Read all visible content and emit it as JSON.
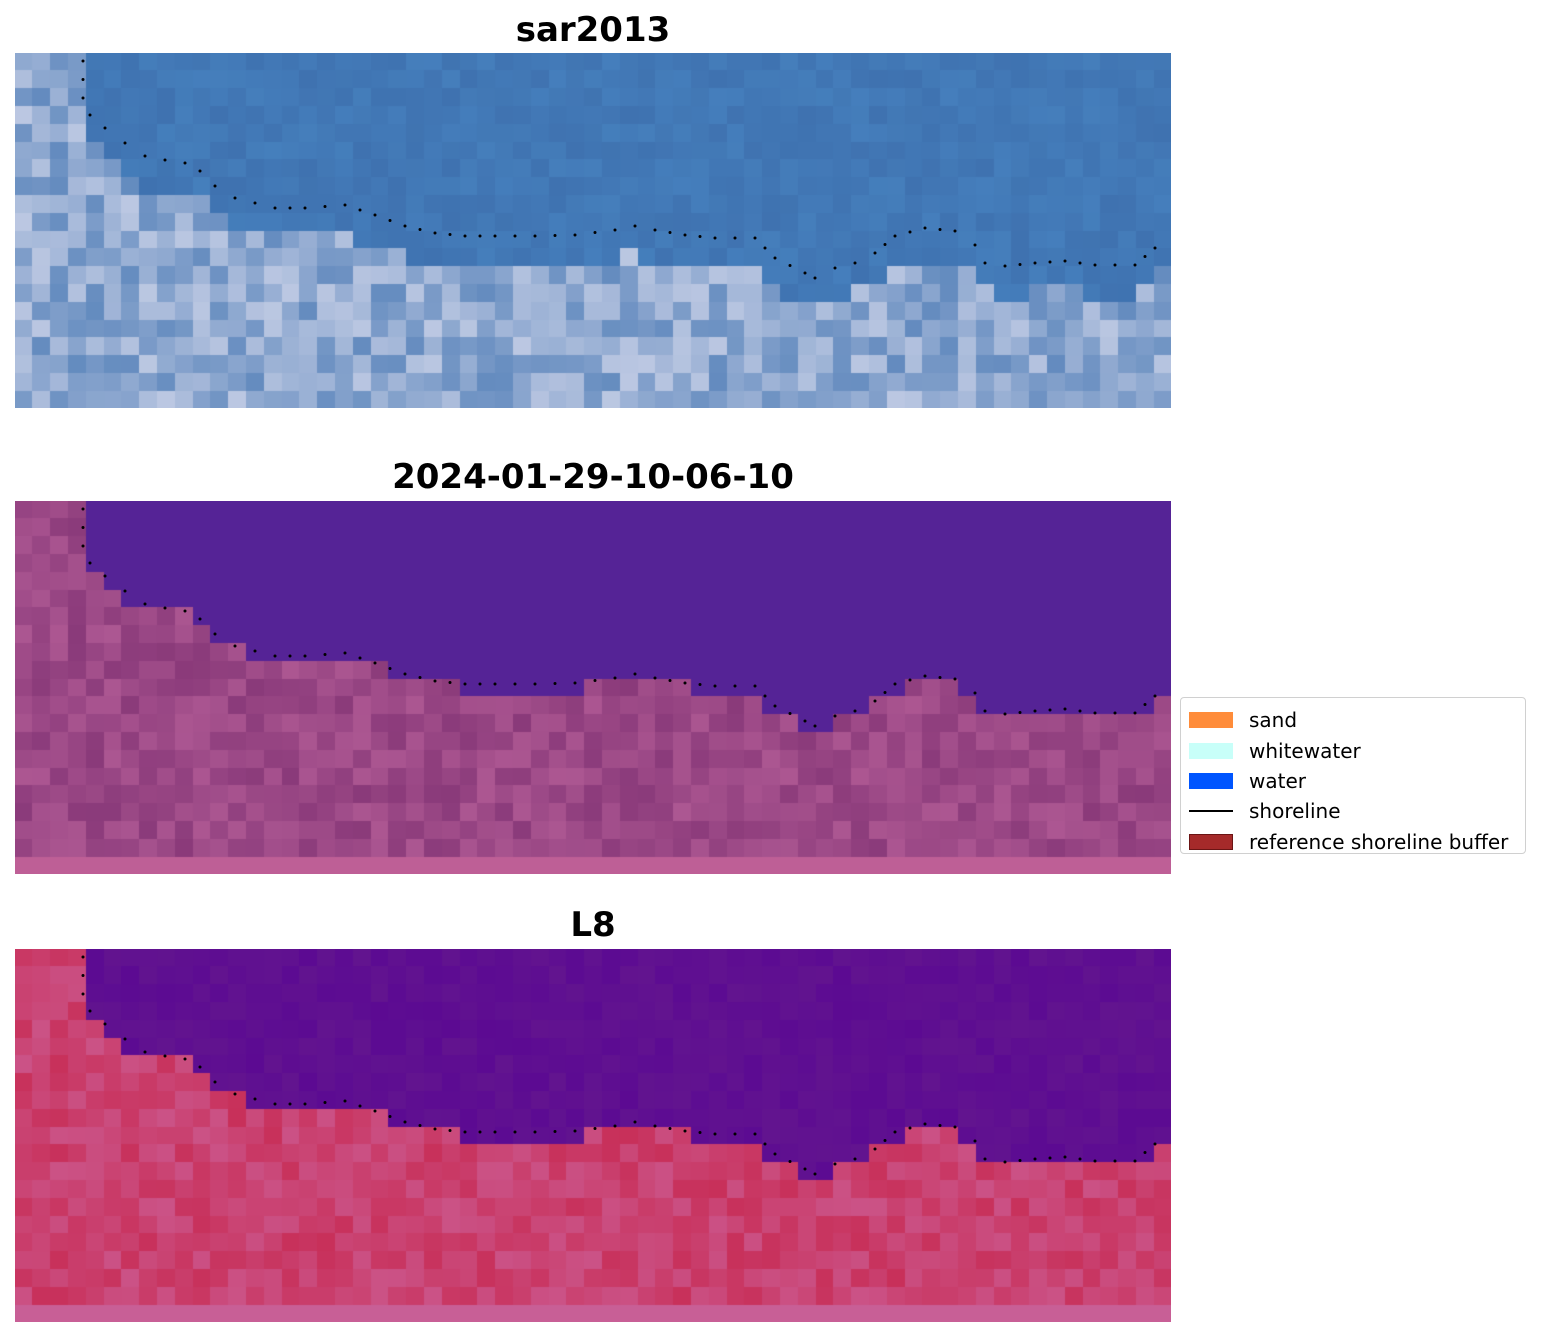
{
  "panels": [
    {
      "title": "sar2013",
      "style": "sar"
    },
    {
      "title": "2024-01-29-10-06-10",
      "style": "classified"
    },
    {
      "title": "L8",
      "style": "falsecolor"
    }
  ],
  "legend": {
    "items": [
      {
        "label": "sand",
        "color": "#ff8c3a",
        "type": "patch"
      },
      {
        "label": "whitewater",
        "color": "#c8fff9",
        "type": "patch"
      },
      {
        "label": "water",
        "color": "#0055ff",
        "type": "patch"
      },
      {
        "label": "shoreline",
        "color": "#000000",
        "type": "line"
      },
      {
        "label": "reference shoreline buffer",
        "color": "#a52a2a",
        "type": "patch"
      }
    ]
  },
  "colors": {
    "water_sar": "#3f72b0",
    "water_classified": "#552396",
    "water_l8": "#62148f",
    "land_classified": "#8a3a7a",
    "land_l8": "#c8305a"
  }
}
